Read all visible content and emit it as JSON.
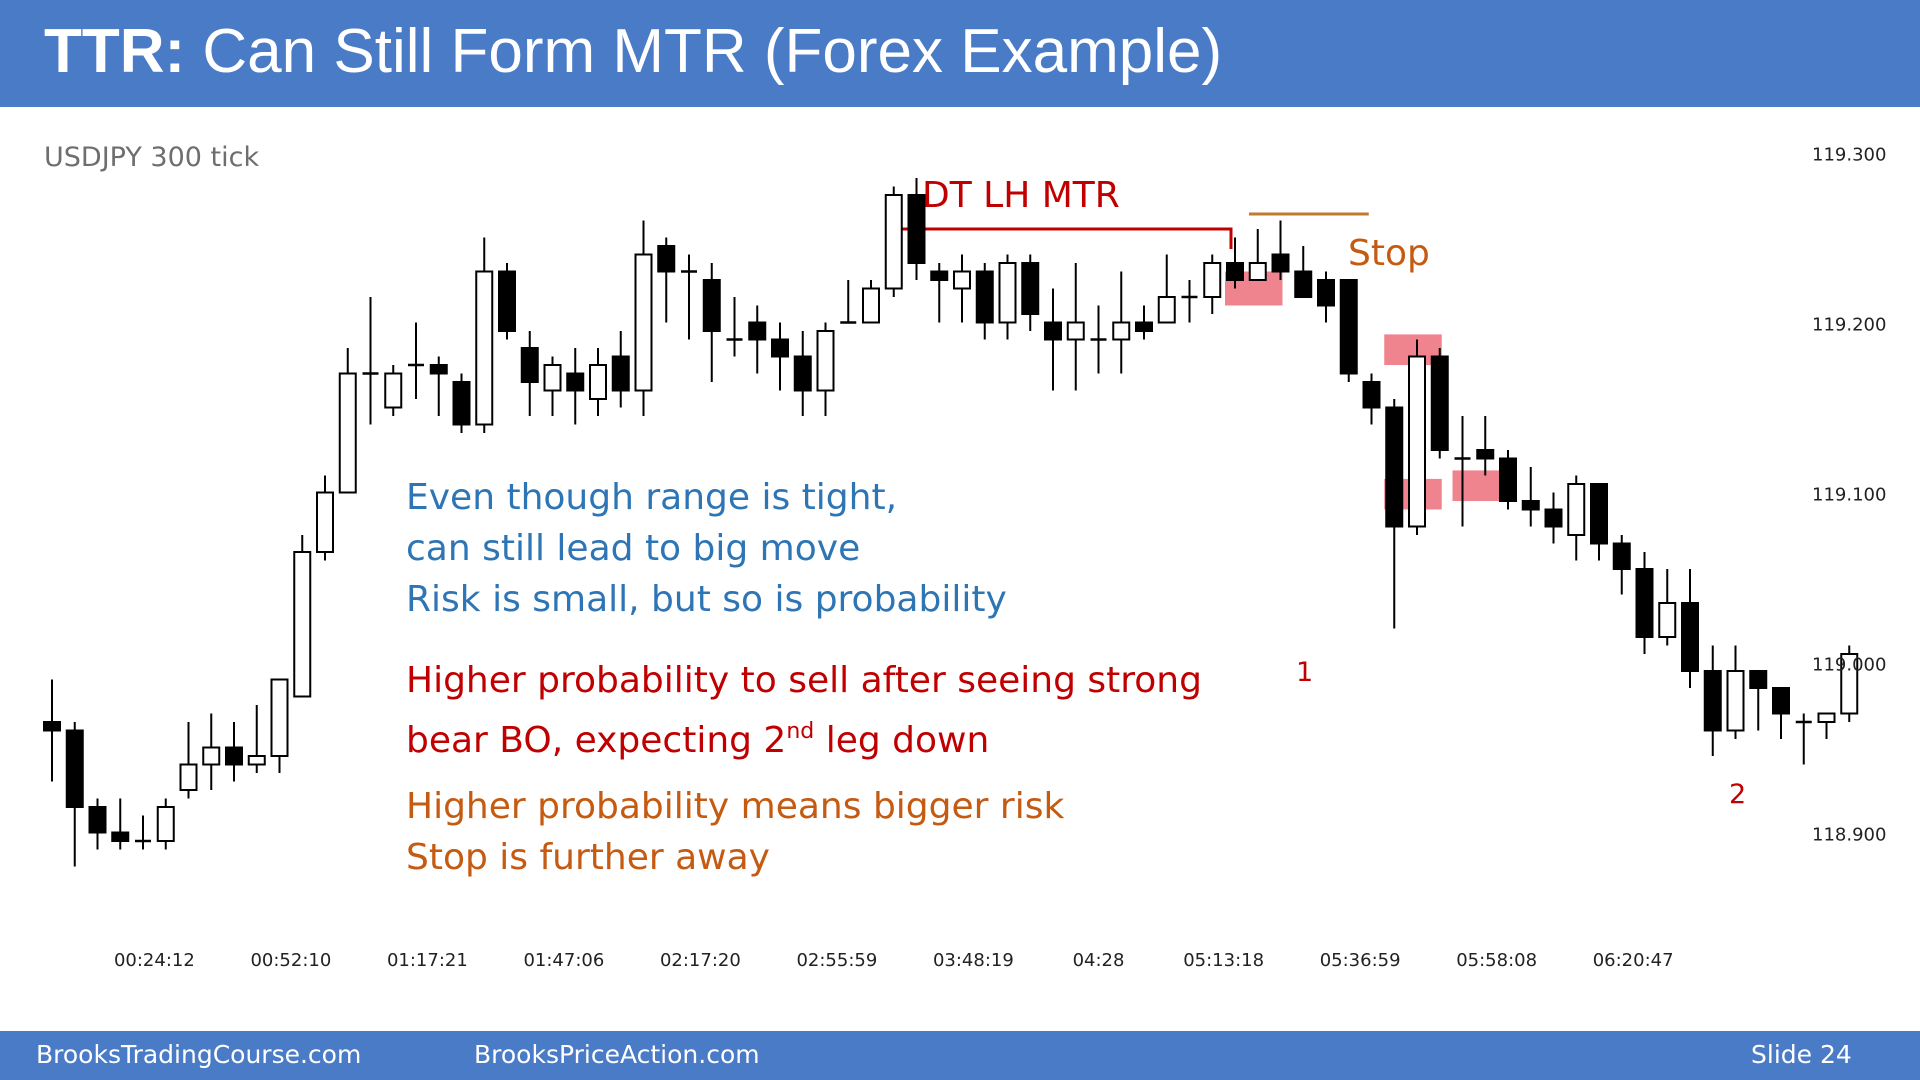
{
  "slide": {
    "title_bold": "TTR:",
    "title_rest": " Can Still Form MTR (Forex Example)",
    "instrument": "USDJPY 300 tick",
    "number_label": "Slide  24"
  },
  "footer": {
    "left": "BrooksTradingCourse.com",
    "center": "BrooksPriceAction.com"
  },
  "annotations": {
    "pattern": "DT LH MTR",
    "stop": "Stop",
    "leg1": "1",
    "leg2": "2",
    "note_blue": [
      "Even though range is tight,",
      "can still lead to big move",
      "Risk is small, but so is probability"
    ],
    "note_red_1": "Higher probability to sell after seeing strong",
    "note_red_2a": "bear BO, expecting 2",
    "note_red_2sup": "nd",
    "note_red_2b": " leg down",
    "note_orange": [
      "Higher probability means bigger risk",
      "Stop is further away"
    ]
  },
  "colors": {
    "header": "#4a7bc6",
    "blue_text": "#2e75b6",
    "red_text": "#c00000",
    "orange_text": "#c55a11",
    "stop_line": "#c07a30",
    "highlight": "#e8505f"
  },
  "chart_data": {
    "type": "candlestick",
    "x_tick_labels": [
      "00:24:12",
      "00:52:10",
      "01:17:21",
      "01:47:06",
      "02:17:20",
      "02:55:59",
      "03:48:19",
      "04:28",
      "05:13:18",
      "05:36:59",
      "05:58:08",
      "06:20:47"
    ],
    "x_tick_positions": [
      4.5,
      10.5,
      16.5,
      22.5,
      28.5,
      34.5,
      40.5,
      46,
      51.5,
      57.5,
      63.5,
      69.5
    ],
    "y_ticks": [
      118.9,
      119.0,
      119.1,
      119.2,
      119.3
    ],
    "y_tick_labels": [
      "118.900",
      "119.000",
      "119.100",
      "119.200",
      "119.300"
    ],
    "ylim": [
      118.875,
      119.325
    ],
    "candles": [
      [
        118.965,
        118.96,
        118.99,
        118.93
      ],
      [
        118.96,
        118.915,
        118.965,
        118.88
      ],
      [
        118.915,
        118.9,
        118.92,
        118.89
      ],
      [
        118.9,
        118.895,
        118.92,
        118.89
      ],
      [
        118.895,
        118.895,
        118.91,
        118.89
      ],
      [
        118.895,
        118.915,
        118.92,
        118.89
      ],
      [
        118.925,
        118.94,
        118.965,
        118.92
      ],
      [
        118.94,
        118.95,
        118.97,
        118.925
      ],
      [
        118.95,
        118.94,
        118.965,
        118.93
      ],
      [
        118.94,
        118.945,
        118.975,
        118.935
      ],
      [
        118.945,
        118.99,
        118.99,
        118.935
      ],
      [
        118.98,
        119.065,
        119.075,
        118.98
      ],
      [
        119.065,
        119.1,
        119.11,
        119.06
      ],
      [
        119.1,
        119.17,
        119.185,
        119.1
      ],
      [
        119.17,
        119.17,
        119.215,
        119.14
      ],
      [
        119.15,
        119.17,
        119.175,
        119.145
      ],
      [
        119.175,
        119.175,
        119.2,
        119.155
      ],
      [
        119.175,
        119.17,
        119.18,
        119.145
      ],
      [
        119.165,
        119.14,
        119.17,
        119.135
      ],
      [
        119.14,
        119.23,
        119.25,
        119.135
      ],
      [
        119.23,
        119.195,
        119.235,
        119.19
      ],
      [
        119.185,
        119.165,
        119.195,
        119.145
      ],
      [
        119.16,
        119.175,
        119.18,
        119.145
      ],
      [
        119.17,
        119.16,
        119.185,
        119.14
      ],
      [
        119.155,
        119.175,
        119.185,
        119.145
      ],
      [
        119.18,
        119.16,
        119.195,
        119.15
      ],
      [
        119.16,
        119.24,
        119.26,
        119.145
      ],
      [
        119.245,
        119.23,
        119.25,
        119.2
      ],
      [
        119.23,
        119.23,
        119.24,
        119.19
      ],
      [
        119.225,
        119.195,
        119.235,
        119.165
      ],
      [
        119.19,
        119.19,
        119.215,
        119.18
      ],
      [
        119.2,
        119.19,
        119.21,
        119.17
      ],
      [
        119.19,
        119.18,
        119.2,
        119.16
      ],
      [
        119.18,
        119.16,
        119.195,
        119.145
      ],
      [
        119.16,
        119.195,
        119.2,
        119.145
      ],
      [
        119.2,
        119.2,
        119.225,
        119.2
      ],
      [
        119.2,
        119.22,
        119.225,
        119.21
      ],
      [
        119.22,
        119.275,
        119.28,
        119.215
      ],
      [
        119.275,
        119.235,
        119.285,
        119.225
      ],
      [
        119.23,
        119.225,
        119.235,
        119.2
      ],
      [
        119.22,
        119.23,
        119.24,
        119.2
      ],
      [
        119.23,
        119.2,
        119.235,
        119.19
      ],
      [
        119.2,
        119.235,
        119.24,
        119.19
      ],
      [
        119.235,
        119.205,
        119.24,
        119.195
      ],
      [
        119.2,
        119.19,
        119.22,
        119.16
      ],
      [
        119.19,
        119.2,
        119.235,
        119.16
      ],
      [
        119.19,
        119.19,
        119.21,
        119.17
      ],
      [
        119.19,
        119.2,
        119.23,
        119.17
      ],
      [
        119.2,
        119.195,
        119.21,
        119.19
      ],
      [
        119.2,
        119.215,
        119.24,
        119.2
      ],
      [
        119.215,
        119.215,
        119.225,
        119.2
      ],
      [
        119.215,
        119.235,
        119.24,
        119.205
      ],
      [
        119.235,
        119.225,
        119.25,
        119.22
      ],
      [
        119.225,
        119.235,
        119.255,
        119.225
      ],
      [
        119.24,
        119.23,
        119.26,
        119.225
      ],
      [
        119.23,
        119.215,
        119.245,
        119.215
      ],
      [
        119.225,
        119.21,
        119.23,
        119.2
      ],
      [
        119.225,
        119.17,
        119.225,
        119.165
      ],
      [
        119.165,
        119.15,
        119.17,
        119.14
      ],
      [
        119.15,
        119.08,
        119.155,
        119.02
      ],
      [
        119.08,
        119.18,
        119.19,
        119.075
      ],
      [
        119.18,
        119.125,
        119.185,
        119.12
      ],
      [
        119.12,
        119.12,
        119.145,
        119.08
      ],
      [
        119.125,
        119.12,
        119.145,
        119.11
      ],
      [
        119.12,
        119.095,
        119.125,
        119.09
      ],
      [
        119.095,
        119.09,
        119.115,
        119.08
      ],
      [
        119.09,
        119.08,
        119.1,
        119.07
      ],
      [
        119.075,
        119.105,
        119.11,
        119.06
      ],
      [
        119.105,
        119.07,
        119.105,
        119.06
      ],
      [
        119.07,
        119.055,
        119.075,
        119.04
      ],
      [
        119.055,
        119.015,
        119.065,
        119.005
      ],
      [
        119.015,
        119.035,
        119.055,
        119.01
      ],
      [
        119.035,
        118.995,
        119.055,
        118.985
      ],
      [
        118.995,
        118.96,
        119.01,
        118.945
      ],
      [
        118.96,
        118.995,
        119.01,
        118.955
      ],
      [
        118.995,
        118.985,
        118.995,
        118.96
      ],
      [
        118.985,
        118.97,
        118.985,
        118.955
      ],
      [
        118.965,
        118.965,
        118.97,
        118.94
      ],
      [
        118.965,
        118.97,
        118.97,
        118.955
      ],
      [
        118.97,
        119.005,
        119.01,
        118.965
      ]
    ],
    "lower_high_level": 119.255,
    "lower_high_span": [
      37,
      52
    ],
    "stop_level": 119.265,
    "stop_span": [
      52,
      57
    ],
    "highlight_zones": [
      {
        "from": 52,
        "to": 54,
        "low": 119.21,
        "high": 119.23
      },
      {
        "from": 59,
        "to": 61,
        "low": 119.09,
        "high": 119.108
      },
      {
        "from": 59,
        "to": 61,
        "low": 119.175,
        "high": 119.193
      },
      {
        "from": 62,
        "to": 64,
        "low": 119.095,
        "high": 119.113
      }
    ]
  }
}
